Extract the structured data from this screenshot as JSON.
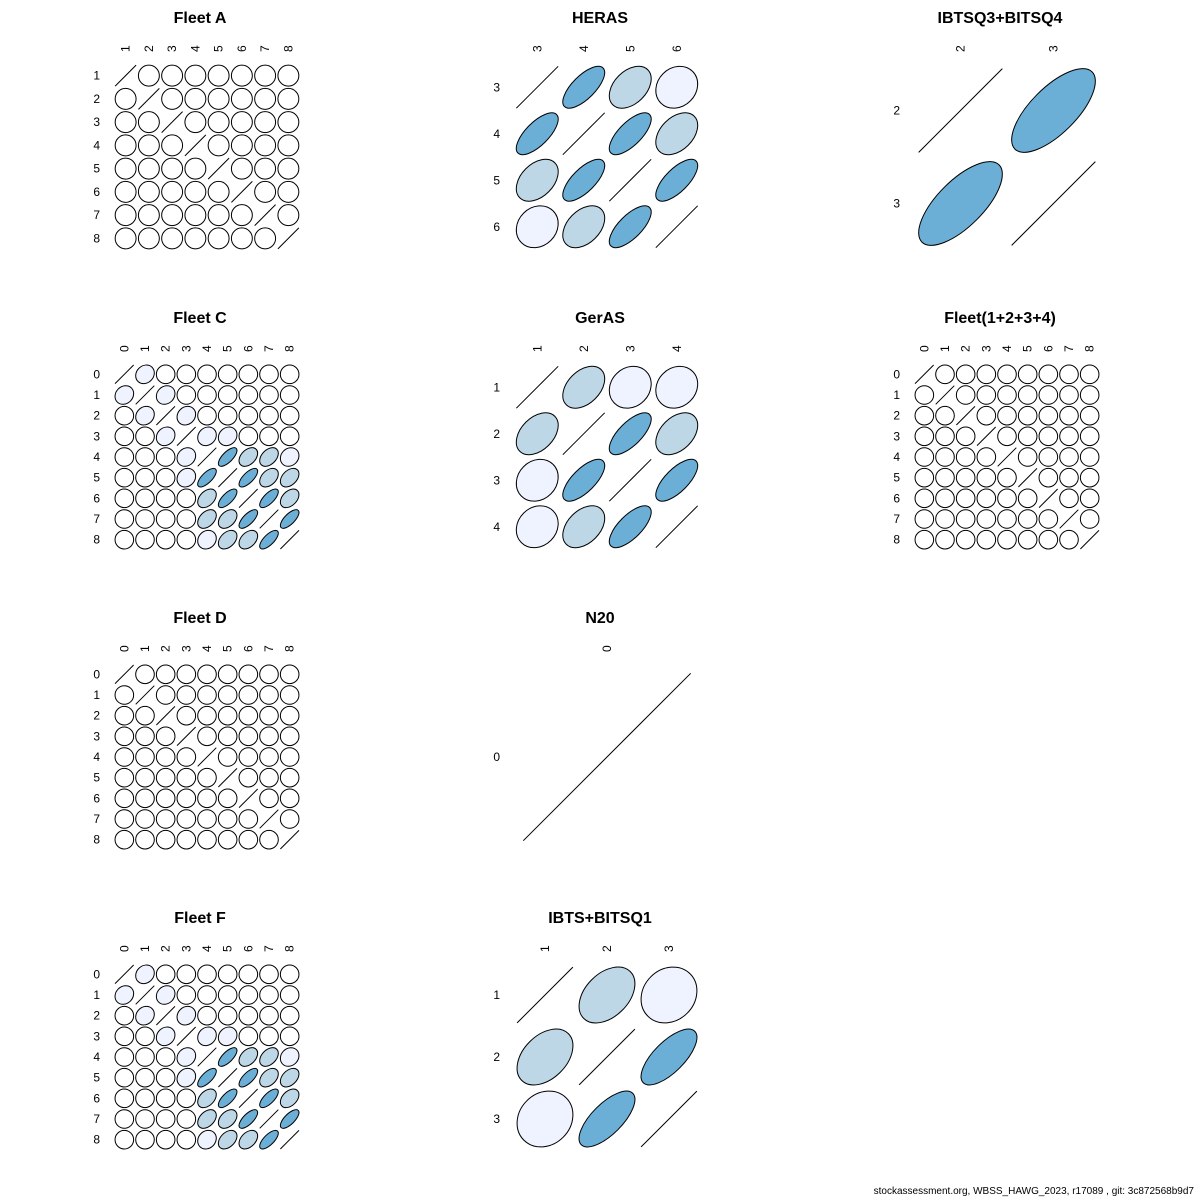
{
  "footer_text": "stockassessment.org, WBSS_HAWG_2023, r17089 , git: 3c872568b9d7",
  "colors": {
    "strong": "#6baed6",
    "medium": "#bdd7e7",
    "weak": "#eff3ff",
    "none": "#ffffff",
    "stroke": "#000000"
  },
  "chart_data": [
    {
      "type": "correlation-ellipse-matrix",
      "title": "Fleet A",
      "labels": [
        "1",
        "2",
        "3",
        "4",
        "5",
        "6",
        "7",
        "8"
      ],
      "correlations": [
        [
          1,
          0,
          0,
          0,
          0,
          0,
          0,
          0
        ],
        [
          0,
          1,
          0,
          0,
          0,
          0,
          0,
          0
        ],
        [
          0,
          0,
          1,
          0,
          0,
          0,
          0,
          0
        ],
        [
          0,
          0,
          0,
          1,
          0,
          0,
          0,
          0
        ],
        [
          0,
          0,
          0,
          0,
          1,
          0,
          0,
          0
        ],
        [
          0,
          0,
          0,
          0,
          0,
          1,
          0,
          0
        ],
        [
          0,
          0,
          0,
          0,
          0,
          0,
          1,
          0
        ],
        [
          0,
          0,
          0,
          0,
          0,
          0,
          0,
          1
        ]
      ]
    },
    {
      "type": "correlation-ellipse-matrix",
      "title": "HERAS",
      "labels": [
        "3",
        "4",
        "5",
        "6"
      ],
      "correlations": [
        [
          1,
          0.7,
          0.4,
          0.15
        ],
        [
          0.7,
          1,
          0.7,
          0.4
        ],
        [
          0.4,
          0.7,
          1,
          0.7
        ],
        [
          0.15,
          0.4,
          0.7,
          1
        ]
      ]
    },
    {
      "type": "correlation-ellipse-matrix",
      "title": "IBTSQ3+BITSQ4",
      "labels": [
        "2",
        "3"
      ],
      "correlations": [
        [
          1,
          0.7
        ],
        [
          0.7,
          1
        ]
      ]
    },
    {
      "type": "correlation-ellipse-matrix",
      "title": "Fleet C",
      "labels": [
        "0",
        "1",
        "2",
        "3",
        "4",
        "5",
        "6",
        "7",
        "8"
      ],
      "correlations": [
        [
          1,
          0.15,
          0,
          0,
          0,
          0,
          0,
          0,
          0
        ],
        [
          0.15,
          1,
          0.15,
          0,
          0,
          0,
          0,
          0,
          0
        ],
        [
          0,
          0.15,
          1,
          0.15,
          0,
          0,
          0,
          0,
          0
        ],
        [
          0,
          0,
          0.15,
          1,
          0.15,
          0.15,
          0,
          0,
          0
        ],
        [
          0,
          0,
          0,
          0.15,
          1,
          0.7,
          0.4,
          0.4,
          0.15
        ],
        [
          0,
          0,
          0,
          0.15,
          0.7,
          1,
          0.7,
          0.4,
          0.4
        ],
        [
          0,
          0,
          0,
          0,
          0.4,
          0.7,
          1,
          0.7,
          0.4
        ],
        [
          0,
          0,
          0,
          0,
          0.4,
          0.4,
          0.7,
          1,
          0.7
        ],
        [
          0,
          0,
          0,
          0,
          0.15,
          0.4,
          0.4,
          0.7,
          1
        ]
      ]
    },
    {
      "type": "correlation-ellipse-matrix",
      "title": "GerAS",
      "labels": [
        "1",
        "2",
        "3",
        "4"
      ],
      "correlations": [
        [
          1,
          0.4,
          0.15,
          0.15
        ],
        [
          0.4,
          1,
          0.7,
          0.4
        ],
        [
          0.15,
          0.7,
          1,
          0.7
        ],
        [
          0.15,
          0.4,
          0.7,
          1
        ]
      ]
    },
    {
      "type": "correlation-ellipse-matrix",
      "title": "Fleet(1+2+3+4)",
      "labels": [
        "0",
        "1",
        "2",
        "3",
        "4",
        "5",
        "6",
        "7",
        "8"
      ],
      "correlations": [
        [
          1,
          0,
          0,
          0,
          0,
          0,
          0,
          0,
          0
        ],
        [
          0,
          1,
          0,
          0,
          0,
          0,
          0,
          0,
          0
        ],
        [
          0,
          0,
          1,
          0,
          0,
          0,
          0,
          0,
          0
        ],
        [
          0,
          0,
          0,
          1,
          0,
          0,
          0,
          0,
          0
        ],
        [
          0,
          0,
          0,
          0,
          1,
          0,
          0,
          0,
          0
        ],
        [
          0,
          0,
          0,
          0,
          0,
          1,
          0,
          0,
          0
        ],
        [
          0,
          0,
          0,
          0,
          0,
          0,
          1,
          0,
          0
        ],
        [
          0,
          0,
          0,
          0,
          0,
          0,
          0,
          1,
          0
        ],
        [
          0,
          0,
          0,
          0,
          0,
          0,
          0,
          0,
          1
        ]
      ]
    },
    {
      "type": "correlation-ellipse-matrix",
      "title": "Fleet D",
      "labels": [
        "0",
        "1",
        "2",
        "3",
        "4",
        "5",
        "6",
        "7",
        "8"
      ],
      "correlations": [
        [
          1,
          0,
          0,
          0,
          0,
          0,
          0,
          0,
          0
        ],
        [
          0,
          1,
          0,
          0,
          0,
          0,
          0,
          0,
          0
        ],
        [
          0,
          0,
          1,
          0,
          0,
          0,
          0,
          0,
          0
        ],
        [
          0,
          0,
          0,
          1,
          0,
          0,
          0,
          0,
          0
        ],
        [
          0,
          0,
          0,
          0,
          1,
          0,
          0,
          0,
          0
        ],
        [
          0,
          0,
          0,
          0,
          0,
          1,
          0,
          0,
          0
        ],
        [
          0,
          0,
          0,
          0,
          0,
          0,
          1,
          0,
          0
        ],
        [
          0,
          0,
          0,
          0,
          0,
          0,
          0,
          1,
          0
        ],
        [
          0,
          0,
          0,
          0,
          0,
          0,
          0,
          0,
          1
        ]
      ]
    },
    {
      "type": "correlation-ellipse-matrix",
      "title": "N20",
      "labels": [
        "0"
      ],
      "correlations": [
        [
          1
        ]
      ]
    },
    null,
    {
      "type": "correlation-ellipse-matrix",
      "title": "Fleet F",
      "labels": [
        "0",
        "1",
        "2",
        "3",
        "4",
        "5",
        "6",
        "7",
        "8"
      ],
      "correlations": [
        [
          1,
          0.15,
          0,
          0,
          0,
          0,
          0,
          0,
          0
        ],
        [
          0.15,
          1,
          0.15,
          0,
          0,
          0,
          0,
          0,
          0
        ],
        [
          0,
          0.15,
          1,
          0.15,
          0,
          0,
          0,
          0,
          0
        ],
        [
          0,
          0,
          0.15,
          1,
          0.15,
          0.15,
          0,
          0,
          0
        ],
        [
          0,
          0,
          0,
          0.15,
          1,
          0.7,
          0.4,
          0.4,
          0.15
        ],
        [
          0,
          0,
          0,
          0.15,
          0.7,
          1,
          0.7,
          0.4,
          0.4
        ],
        [
          0,
          0,
          0,
          0,
          0.4,
          0.7,
          1,
          0.7,
          0.4
        ],
        [
          0,
          0,
          0,
          0,
          0.4,
          0.4,
          0.7,
          1,
          0.7
        ],
        [
          0,
          0,
          0,
          0,
          0.15,
          0.4,
          0.4,
          0.7,
          1
        ]
      ]
    },
    {
      "type": "correlation-ellipse-matrix",
      "title": "IBTS+BITSQ1",
      "labels": [
        "1",
        "2",
        "3"
      ],
      "correlations": [
        [
          1,
          0.4,
          0.15
        ],
        [
          0.4,
          1,
          0.7
        ],
        [
          0.15,
          0.7,
          1
        ]
      ]
    }
  ]
}
